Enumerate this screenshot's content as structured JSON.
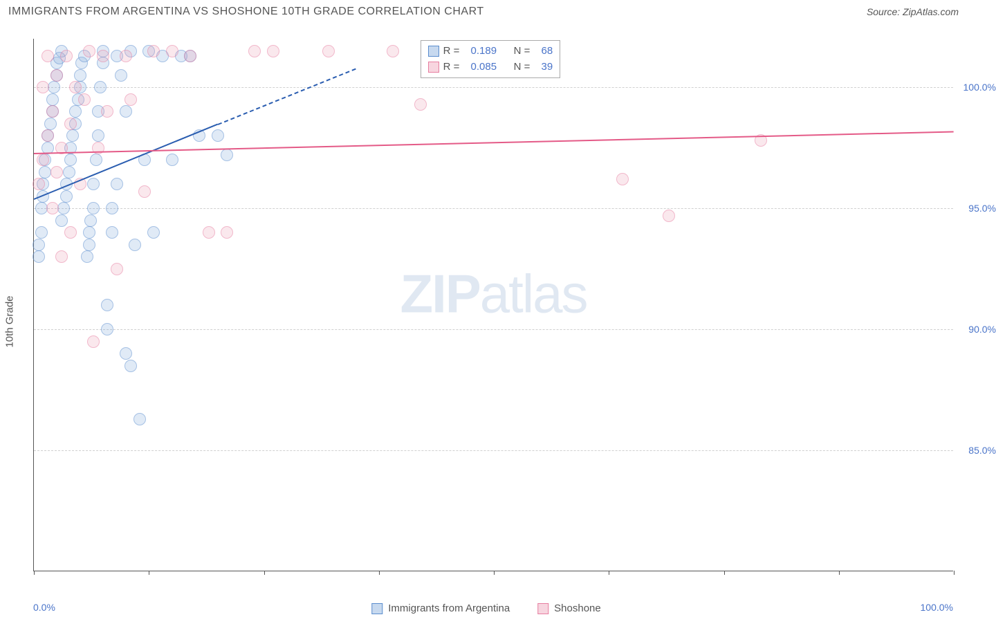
{
  "title": "IMMIGRANTS FROM ARGENTINA VS SHOSHONE 10TH GRADE CORRELATION CHART",
  "source": "Source: ZipAtlas.com",
  "yaxis_title": "10th Grade",
  "watermark_bold": "ZIP",
  "watermark_rest": "atlas",
  "chart": {
    "type": "scatter",
    "xlim": [
      0,
      100
    ],
    "ylim": [
      80,
      102
    ],
    "y_ticks": [
      85,
      90,
      95,
      100
    ],
    "y_tick_labels": [
      "85.0%",
      "90.0%",
      "95.0%",
      "100.0%"
    ],
    "x_ticks": [
      0,
      12.5,
      25,
      37.5,
      50,
      62.5,
      75,
      87.5,
      100
    ],
    "x_min_label": "0.0%",
    "x_max_label": "100.0%",
    "grid_color": "#d0d0d0",
    "axis_color": "#555555",
    "series": [
      {
        "key": "a",
        "name": "Immigrants from Argentina",
        "fill": "rgba(130,170,220,0.45)",
        "stroke": "#5b8dce",
        "R": "0.189",
        "N": "68",
        "trend": {
          "x1": 0,
          "y1": 95.4,
          "x2": 20,
          "y2": 98.5,
          "color": "#2a5db0",
          "dash_to_x": 35,
          "dash_to_y": 100.8
        },
        "points": [
          [
            0.5,
            93.0
          ],
          [
            0.5,
            93.5
          ],
          [
            0.8,
            94.0
          ],
          [
            0.8,
            95.0
          ],
          [
            1.0,
            95.5
          ],
          [
            1.0,
            96.0
          ],
          [
            1.2,
            96.5
          ],
          [
            1.2,
            97.0
          ],
          [
            1.5,
            97.5
          ],
          [
            1.5,
            98.0
          ],
          [
            1.8,
            98.5
          ],
          [
            2.0,
            99.0
          ],
          [
            2.0,
            99.5
          ],
          [
            2.2,
            100.0
          ],
          [
            2.5,
            100.5
          ],
          [
            2.5,
            101.0
          ],
          [
            2.8,
            101.2
          ],
          [
            3.0,
            101.5
          ],
          [
            3.0,
            94.5
          ],
          [
            3.2,
            95.0
          ],
          [
            3.5,
            95.5
          ],
          [
            3.5,
            96.0
          ],
          [
            3.8,
            96.5
          ],
          [
            4.0,
            97.0
          ],
          [
            4.0,
            97.5
          ],
          [
            4.2,
            98.0
          ],
          [
            4.5,
            98.5
          ],
          [
            4.5,
            99.0
          ],
          [
            4.8,
            99.5
          ],
          [
            5.0,
            100.0
          ],
          [
            5.0,
            100.5
          ],
          [
            5.2,
            101.0
          ],
          [
            5.5,
            101.3
          ],
          [
            5.8,
            93.0
          ],
          [
            6.0,
            93.5
          ],
          [
            6.0,
            94.0
          ],
          [
            6.2,
            94.5
          ],
          [
            6.5,
            95.0
          ],
          [
            6.5,
            96.0
          ],
          [
            6.8,
            97.0
          ],
          [
            7.0,
            98.0
          ],
          [
            7.0,
            99.0
          ],
          [
            7.2,
            100.0
          ],
          [
            7.5,
            101.0
          ],
          [
            7.5,
            101.5
          ],
          [
            8.0,
            91.0
          ],
          [
            8.0,
            90.0
          ],
          [
            8.5,
            94.0
          ],
          [
            8.5,
            95.0
          ],
          [
            9.0,
            96.0
          ],
          [
            9.0,
            101.3
          ],
          [
            9.5,
            100.5
          ],
          [
            10.0,
            99.0
          ],
          [
            10.0,
            89.0
          ],
          [
            10.5,
            88.5
          ],
          [
            10.5,
            101.5
          ],
          [
            11.0,
            93.5
          ],
          [
            11.5,
            86.3
          ],
          [
            12.0,
            97.0
          ],
          [
            12.5,
            101.5
          ],
          [
            13.0,
            94.0
          ],
          [
            14.0,
            101.3
          ],
          [
            15.0,
            97.0
          ],
          [
            16.0,
            101.3
          ],
          [
            17.0,
            101.3
          ],
          [
            18.0,
            98.0
          ],
          [
            20.0,
            98.0
          ],
          [
            21.0,
            97.2
          ]
        ]
      },
      {
        "key": "b",
        "name": "Shoshone",
        "fill": "rgba(235,150,175,0.40)",
        "stroke": "#e77ea0",
        "R": "0.085",
        "N": "39",
        "trend": {
          "x1": 0,
          "y1": 97.3,
          "x2": 100,
          "y2": 98.2,
          "color": "#e45a87"
        },
        "points": [
          [
            0.5,
            96.0
          ],
          [
            1.0,
            97.0
          ],
          [
            1.0,
            100.0
          ],
          [
            1.5,
            98.0
          ],
          [
            1.5,
            101.3
          ],
          [
            2.0,
            95.0
          ],
          [
            2.0,
            99.0
          ],
          [
            2.5,
            96.5
          ],
          [
            2.5,
            100.5
          ],
          [
            3.0,
            93.0
          ],
          [
            3.0,
            97.5
          ],
          [
            3.5,
            101.3
          ],
          [
            4.0,
            98.5
          ],
          [
            4.0,
            94.0
          ],
          [
            4.5,
            100.0
          ],
          [
            5.0,
            96.0
          ],
          [
            5.5,
            99.5
          ],
          [
            6.0,
            101.5
          ],
          [
            6.5,
            89.5
          ],
          [
            7.0,
            97.5
          ],
          [
            7.5,
            101.3
          ],
          [
            8.0,
            99.0
          ],
          [
            9.0,
            92.5
          ],
          [
            10.0,
            101.3
          ],
          [
            10.5,
            99.5
          ],
          [
            12.0,
            95.7
          ],
          [
            13.0,
            101.5
          ],
          [
            15.0,
            101.5
          ],
          [
            17.0,
            101.3
          ],
          [
            19.0,
            94.0
          ],
          [
            21.0,
            94.0
          ],
          [
            24.0,
            101.5
          ],
          [
            26.0,
            101.5
          ],
          [
            32.0,
            101.5
          ],
          [
            39.0,
            101.5
          ],
          [
            42.0,
            99.3
          ],
          [
            64.0,
            96.2
          ],
          [
            69.0,
            94.7
          ],
          [
            79.0,
            97.8
          ]
        ]
      }
    ]
  },
  "legend": {
    "r_label": "R =",
    "n_label": "N ="
  }
}
